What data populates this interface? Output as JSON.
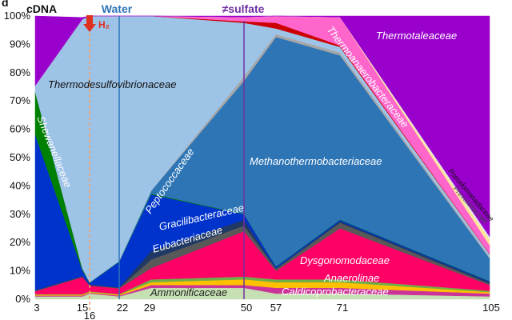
{
  "chart_data": {
    "type": "area",
    "panel_letter": "d",
    "x": [
      3,
      15,
      16,
      22,
      29,
      50,
      57,
      71,
      105
    ],
    "xtick_labels": [
      "3",
      "15",
      "16",
      "22",
      "29",
      "50",
      "57",
      "71",
      "105"
    ],
    "ylim": [
      0,
      100
    ],
    "ytick_labels": [
      "0%",
      "10%",
      "20%",
      "30%",
      "40%",
      "50%",
      "60%",
      "70%",
      "80%",
      "90%",
      "100%"
    ],
    "grid": false,
    "series": [
      {
        "name": "Ammonificaceae",
        "color": "#c6e0b4",
        "values": [
          1,
          1,
          2,
          1,
          4,
          4,
          2,
          2,
          1
        ],
        "label_color": "#222222"
      },
      {
        "name": "Caldicoprobacteraceae",
        "color": "#cc3399",
        "values": [
          0.3,
          0.3,
          0.3,
          0.3,
          1,
          1,
          2,
          2,
          1
        ],
        "label_color": "#ffffff"
      },
      {
        "name": "Anaerolinae",
        "color": "#ffc000",
        "values": [
          0.3,
          0.3,
          0.3,
          0.3,
          1,
          2,
          2,
          2,
          0.5
        ],
        "label_color": "#ffffff"
      },
      {
        "name": "",
        "color": "#70ad47",
        "values": [
          0.2,
          0.2,
          0.2,
          0.2,
          1,
          1,
          1,
          1,
          0.5
        ]
      },
      {
        "name": "Dysgonomodaceae",
        "color": "#ff0066",
        "values": [
          1,
          6,
          2,
          2,
          4,
          16,
          3,
          18,
          2
        ],
        "label_color": "#ffffff"
      },
      {
        "name": "Eubacteriaceae",
        "color": "#595959",
        "values": [
          0.2,
          0.2,
          0.2,
          0.2,
          3,
          2,
          0.7,
          2,
          0.5
        ],
        "label_color": "#ffffff"
      },
      {
        "name": "Gracilibacteraceae",
        "color": "#1f3864",
        "values": [
          0.2,
          0.2,
          0.2,
          0.2,
          3,
          2,
          0.3,
          0.5,
          0.5
        ],
        "label_color": "#ffffff"
      },
      {
        "name": "Peptococcaceae",
        "color": "#0033cc",
        "values": [
          55,
          2,
          0.5,
          9,
          20,
          2,
          0.5,
          0.5,
          0.3
        ],
        "label_color": "#ffffff"
      },
      {
        "name": "Shewanellaceae",
        "color": "#008000",
        "values": [
          15,
          0.5,
          0.1,
          0.1,
          0.3,
          0.1,
          0.1,
          0.1,
          0.1
        ],
        "label_color": "#ffffff"
      },
      {
        "name": "Methanothermobacteriaceae",
        "color": "#2e75b6",
        "values": [
          0.2,
          0.2,
          0.2,
          0.2,
          1,
          47,
          81,
          58,
          8
        ],
        "label_color": "#ffffff"
      },
      {
        "name": "",
        "color": "#a6a6a6",
        "values": [
          0,
          0,
          0,
          0,
          0,
          1.5,
          1,
          1,
          0.5
        ]
      },
      {
        "name": "Thermodesulfovibrionaceae",
        "color": "#9dc3e6",
        "values": [
          2,
          88,
          95,
          87,
          63,
          19,
          2,
          2,
          1
        ],
        "label_color": "#111111"
      },
      {
        "name": "",
        "color": "#cc0000",
        "values": [
          0,
          0,
          0,
          0,
          0,
          0.5,
          2,
          0.5,
          0.2
        ]
      },
      {
        "name": "Thermoanaerobacteraceae",
        "color": "#ff66cc",
        "values": [
          0,
          0,
          0,
          0,
          0,
          1.5,
          4,
          10,
          3
        ],
        "label_color": "#ffffff"
      },
      {
        "name": "Pseudomonadaceae",
        "color": "#ffe699",
        "values": [
          0,
          0,
          0,
          0,
          0,
          0,
          0,
          0,
          2
        ],
        "label_color": "#111111"
      },
      {
        "name": "Prevotellaceae",
        "color": "#dde6f0",
        "values": [
          0,
          0,
          0,
          0,
          0,
          0,
          0,
          0,
          1
        ],
        "label_color": "#444444"
      },
      {
        "name": "Thermotaleaceae",
        "color": "#9900cc",
        "values": [
          24.6,
          0.6,
          0.2,
          0.5,
          1.7,
          0.4,
          0.4,
          1.9,
          78.4
        ],
        "label_color": "#ffffff"
      }
    ],
    "annotations": {
      "cdna": {
        "text": "cDNA",
        "color": "#111111"
      },
      "water": {
        "text": "Water",
        "x": 22,
        "color": "#2e75b6"
      },
      "sulfate": {
        "text": "≠sulfate",
        "x": 50,
        "color": "#7030a0"
      },
      "h2": {
        "text": "H₂",
        "x": 16,
        "color": "#e03020"
      }
    }
  }
}
